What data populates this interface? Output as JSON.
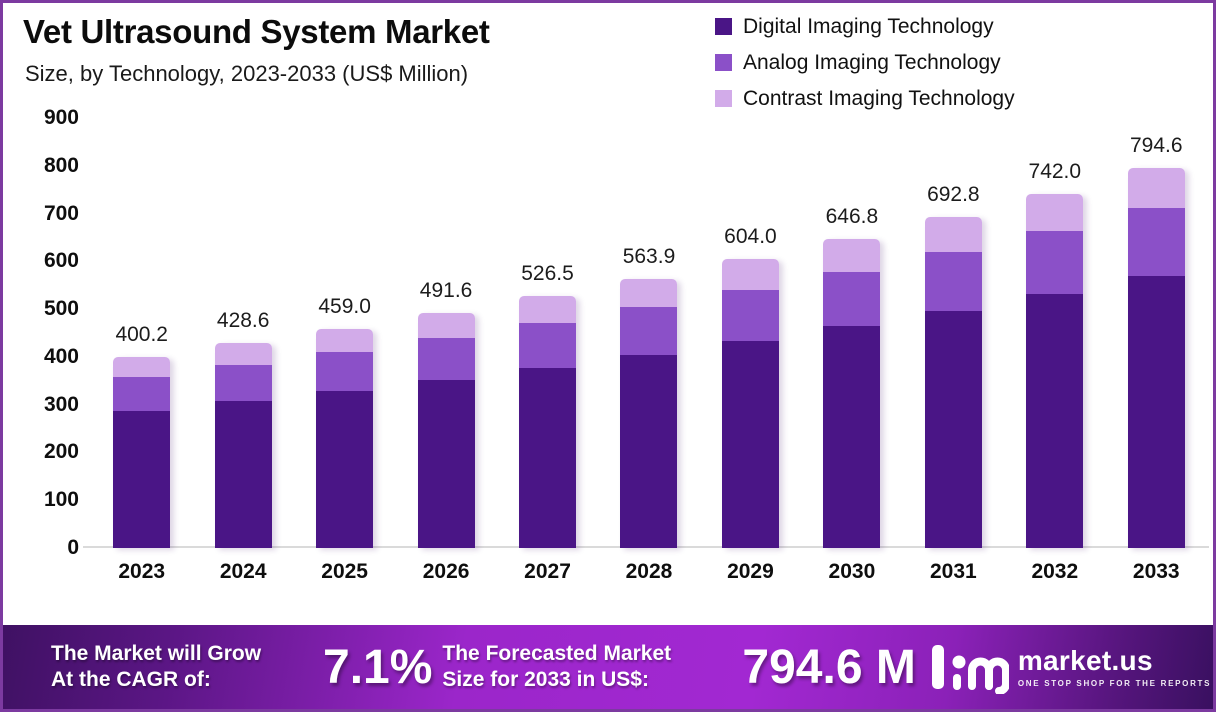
{
  "frame": {
    "border_color": "#7c3aa0",
    "background": "#ffffff"
  },
  "chart_data": {
    "type": "bar",
    "stacked": true,
    "title": "Vet Ultrasound System Market",
    "subtitle": "Size, by Technology, 2023-2033 (US$ Million)",
    "unit": "US$ Million",
    "categories": [
      "2023",
      "2024",
      "2025",
      "2026",
      "2027",
      "2028",
      "2029",
      "2030",
      "2031",
      "2032",
      "2033"
    ],
    "totals": [
      400.2,
      428.6,
      459.0,
      491.6,
      526.5,
      563.9,
      604.0,
      646.8,
      692.8,
      742.0,
      794.6
    ],
    "series": [
      {
        "name": "Digital Imaging Technology",
        "key": "digital",
        "color": "#4a1586",
        "values": [
          287.1,
          307.5,
          329.3,
          352.7,
          377.7,
          404.5,
          433.3,
          464.0,
          497.0,
          532.3,
          570.1
        ]
      },
      {
        "name": "Analog Imaging Technology",
        "key": "analog",
        "color": "#8b50c8",
        "values": [
          70.9,
          75.9,
          81.3,
          87.0,
          93.2,
          99.8,
          106.9,
          114.5,
          122.6,
          131.3,
          140.6
        ]
      },
      {
        "name": "Contrast Imaging Technology",
        "key": "contrast",
        "color": "#d2abe9",
        "values": [
          42.2,
          45.2,
          48.4,
          51.9,
          55.6,
          59.6,
          63.8,
          68.3,
          73.2,
          78.4,
          83.9
        ]
      }
    ],
    "ylim": [
      0,
      900
    ],
    "yticks": [
      900,
      800,
      700,
      600,
      500,
      400,
      300,
      200,
      100,
      0
    ],
    "grid": false,
    "legend_position": "top-right"
  },
  "footer": {
    "growth_line1": "The Market will Grow",
    "growth_line2": "At the CAGR of:",
    "cagr_value": "7.1%",
    "forecast_line1": "The Forecasted Market",
    "forecast_line2": "Size for 2033 in US$:",
    "forecast_value": "794.6 M",
    "logo_text": "market.us",
    "logo_tagline": "ONE STOP SHOP FOR THE REPORTS"
  }
}
